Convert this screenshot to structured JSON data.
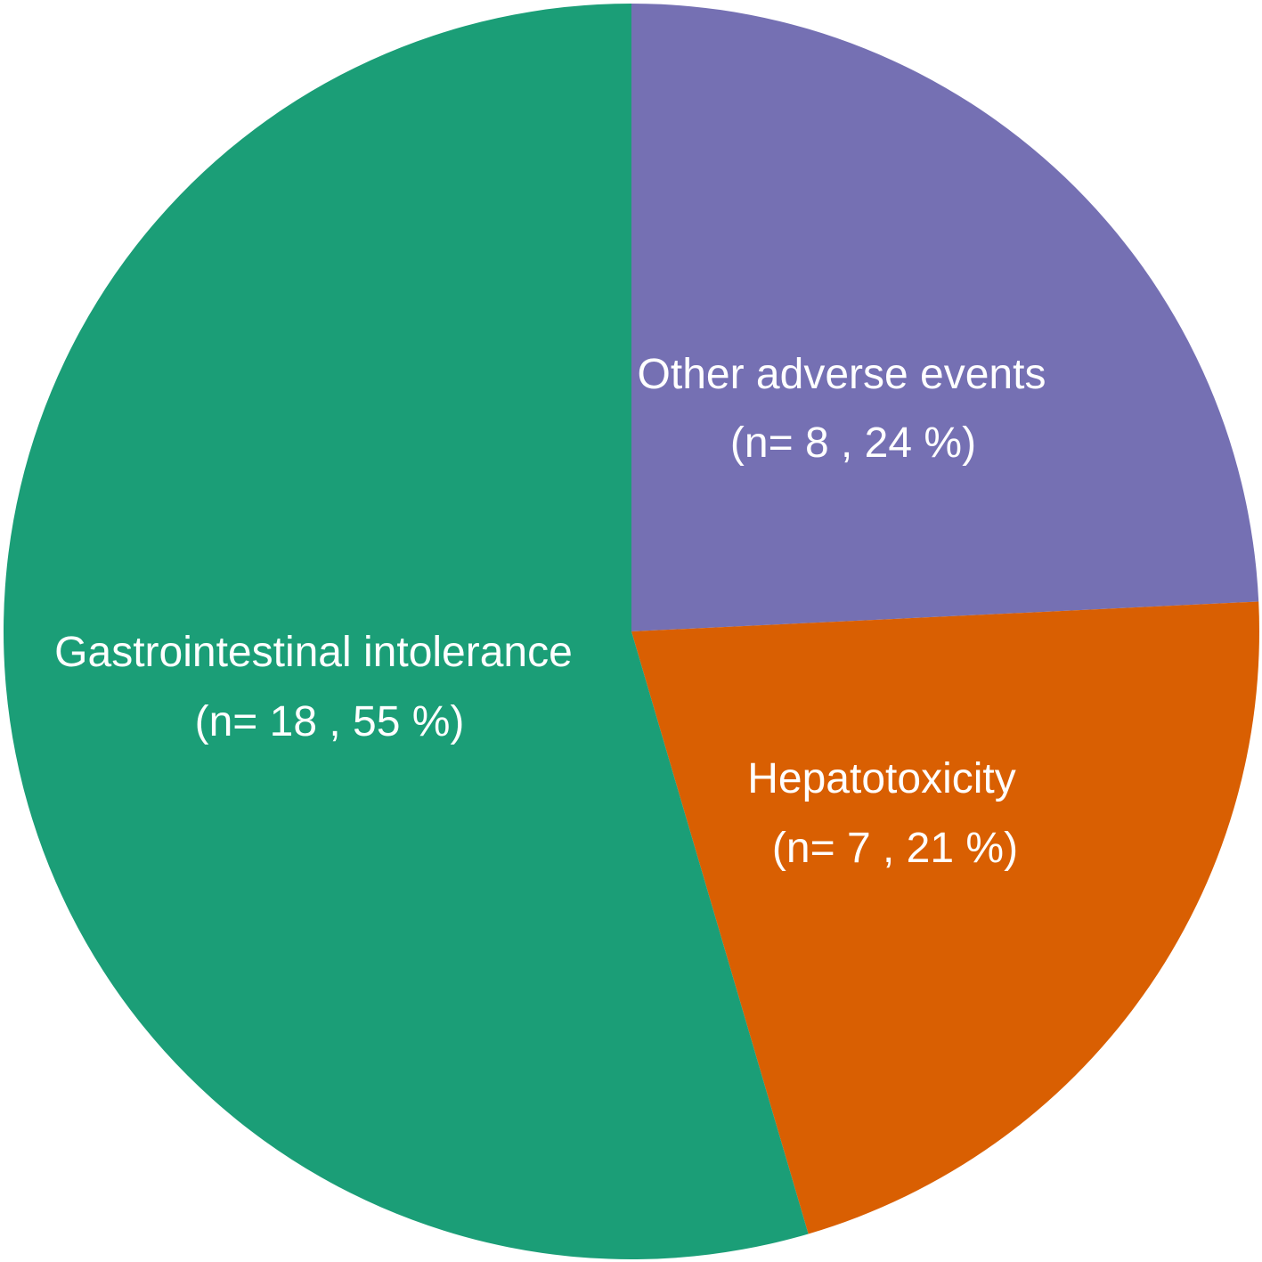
{
  "chart_data": {
    "type": "pie",
    "title": "",
    "start_angle_deg": 0,
    "direction": "clockwise",
    "slices": [
      {
        "name": "Other adverse events",
        "value": 8,
        "percent": 24,
        "label_line1": "Other adverse events",
        "label_line2": "(n= 8 , 24 %)",
        "color": "#7570B3"
      },
      {
        "name": "Hepatotoxicity",
        "value": 7,
        "percent": 21,
        "label_line1": "Hepatotoxicity",
        "label_line2": "(n= 7 , 21 %)",
        "color": "#D95F02"
      },
      {
        "name": "Gastrointestinal intolerance",
        "value": 18,
        "percent": 55,
        "label_line1": "Gastrointestinal intolerance",
        "label_line2": "(n= 18 , 55 %)",
        "color": "#1B9E77"
      }
    ]
  }
}
